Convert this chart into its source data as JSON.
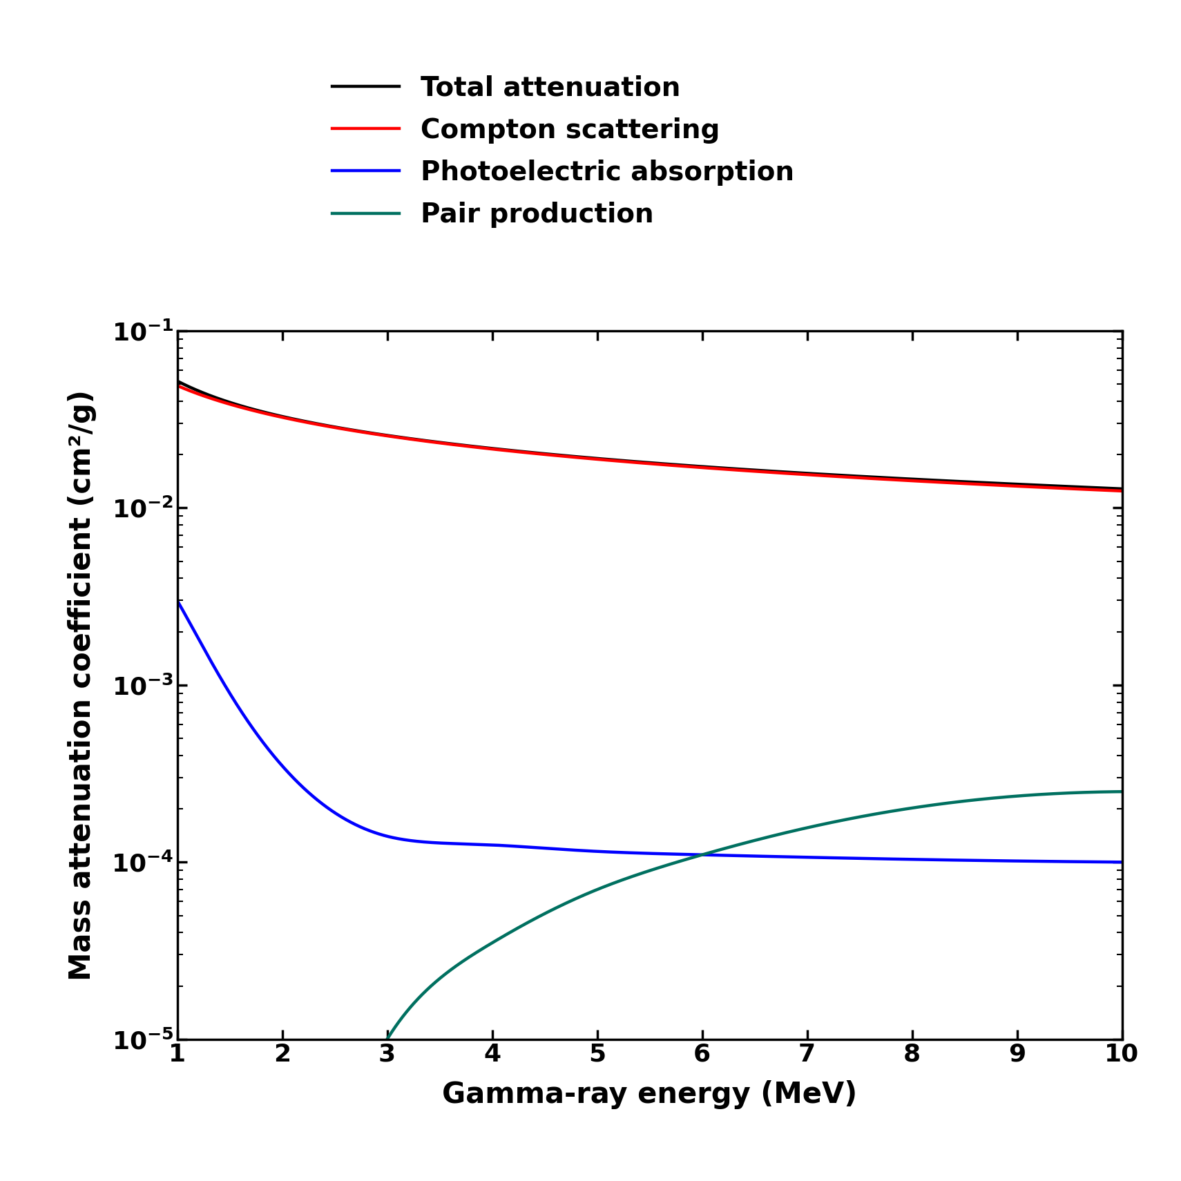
{
  "xlabel": "Gamma-ray energy (MeV)",
  "ylabel": "Mass attenuation coefficient (cm²/g)",
  "xlim": [
    1,
    10
  ],
  "ylim": [
    1e-05,
    0.1
  ],
  "legend_labels": [
    "Total attenuation",
    "Compton scattering",
    "Photoelectric absorption",
    "Pair production"
  ],
  "legend_colors": [
    "#000000",
    "#ff0000",
    "#0000ff",
    "#007060"
  ],
  "line_width": 3.2,
  "background_color": "#ffffff",
  "label_fontsize": 30,
  "tick_fontsize": 26,
  "legend_fontsize": 28,
  "xticks": [
    1,
    2,
    3,
    4,
    5,
    6,
    7,
    8,
    9,
    10
  ],
  "compton_a": 0.049,
  "compton_b": -0.595,
  "photo_a": 0.003,
  "photo_b": -3.2,
  "pair_threshold": 3.0,
  "pair_a": 1e-05,
  "pair_b": 1.65
}
